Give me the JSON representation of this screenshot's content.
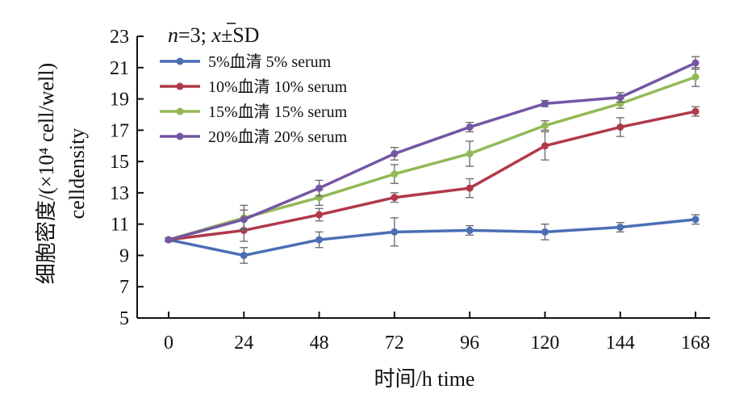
{
  "chart_data": {
    "type": "line",
    "title": "",
    "annotation": {
      "n_label": "n",
      "n_value": "=3; ",
      "mean_symbol": "x",
      "sd_suffix": "±SD"
    },
    "xlabel": "时间/h time",
    "ylabel_line1": "细胞密度/(×10⁴ cell/well)",
    "ylabel_line2": "celldensity",
    "x": [
      0,
      24,
      48,
      72,
      96,
      120,
      144,
      168
    ],
    "x_tick_labels": [
      "0",
      "24",
      "48",
      "72",
      "96",
      "120",
      "144",
      "168"
    ],
    "xlim": [
      0,
      168
    ],
    "ylim": [
      5,
      23
    ],
    "y_ticks": [
      5,
      7,
      9,
      11,
      13,
      15,
      17,
      19,
      21,
      23
    ],
    "y_tick_labels": [
      "5",
      "7",
      "9",
      "11",
      "13",
      "15",
      "17",
      "19",
      "21",
      "23"
    ],
    "grid": false,
    "legend_position": "top-left",
    "series": [
      {
        "name": "5%血清 5% serum",
        "color": "#4a6fb5",
        "values": [
          10.0,
          9.0,
          10.0,
          10.5,
          10.6,
          10.5,
          10.8,
          11.3
        ],
        "errors": [
          0.1,
          0.5,
          0.5,
          0.9,
          0.3,
          0.5,
          0.3,
          0.3
        ]
      },
      {
        "name": "10%血清 10% serum",
        "color": "#b0394a",
        "values": [
          10.0,
          10.6,
          11.6,
          12.7,
          13.3,
          16.0,
          17.2,
          18.2
        ],
        "errors": [
          0.1,
          0.7,
          0.4,
          0.3,
          0.6,
          0.9,
          0.6,
          0.3
        ]
      },
      {
        "name": "15%血清 15% serum",
        "color": "#93b957",
        "values": [
          10.0,
          11.4,
          12.7,
          14.2,
          15.5,
          17.3,
          18.7,
          20.4
        ],
        "errors": [
          0.1,
          0.8,
          0.5,
          0.6,
          0.8,
          0.3,
          0.3,
          0.6
        ]
      },
      {
        "name": "20%血清 20% serum",
        "color": "#7456a3",
        "values": [
          10.0,
          11.3,
          13.3,
          15.5,
          17.2,
          18.7,
          19.1,
          21.3
        ],
        "errors": [
          0.1,
          0.6,
          0.5,
          0.4,
          0.3,
          0.2,
          0.3,
          0.4
        ]
      }
    ]
  }
}
